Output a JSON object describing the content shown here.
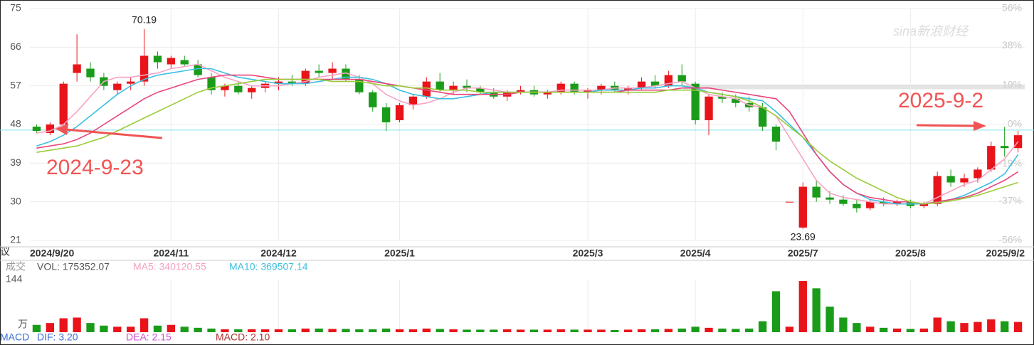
{
  "chart_data": {
    "type": "candlestick",
    "watermark": "sina新浪财经",
    "side_label": "议",
    "categories": [
      "2024/9/20",
      null,
      null,
      null,
      null,
      null,
      null,
      null,
      null,
      null,
      "2024/11",
      null,
      null,
      null,
      null,
      null,
      null,
      null,
      "2024/12",
      null,
      null,
      null,
      null,
      null,
      null,
      null,
      null,
      "2025/1",
      null,
      null,
      null,
      null,
      null,
      null,
      null,
      null,
      null,
      null,
      null,
      null,
      null,
      "2025/3",
      null,
      null,
      null,
      null,
      null,
      null,
      null,
      "2025/4",
      null,
      null,
      null,
      null,
      null,
      null,
      null,
      "2025/7",
      null,
      null,
      null,
      null,
      null,
      null,
      null,
      "2025/8",
      null,
      null,
      null,
      null,
      null,
      null,
      null,
      "2025/9/2"
    ],
    "open": [
      47.5,
      46,
      48,
      60,
      61,
      59,
      56,
      57.5,
      58,
      64,
      62,
      63,
      62,
      59,
      56,
      57,
      55.5,
      56.5,
      57.5,
      58,
      57.5,
      60.5,
      60,
      61,
      58.5,
      55.5,
      52,
      49,
      52.5,
      54.5,
      58,
      56,
      57,
      56.5,
      55.5,
      54.5,
      55.5,
      56,
      55,
      55.5,
      57.5,
      55.5,
      56,
      57,
      56,
      56.5,
      58,
      57,
      59.5,
      57.5,
      49,
      54.5,
      54,
      53,
      52,
      47.5,
      30,
      24,
      33.5,
      31,
      30.5,
      29.5,
      28.5,
      30,
      29.5,
      30,
      29,
      29.5,
      36,
      34.5,
      35.5,
      37.5,
      43,
      42.5
    ],
    "high": [
      48,
      48.5,
      58,
      69,
      62.5,
      60,
      58,
      59,
      70.19,
      65,
      64,
      64,
      63,
      60,
      57.5,
      58,
      57,
      58,
      59,
      59.5,
      61,
      62,
      62.5,
      62,
      59.5,
      56,
      53,
      53,
      55,
      59,
      60,
      58,
      58.5,
      57,
      56.5,
      56,
      57,
      57,
      56,
      58,
      58,
      56.5,
      57.5,
      58,
      57,
      59,
      59.5,
      60.5,
      62,
      58,
      55,
      55.5,
      55,
      54.5,
      53,
      48,
      30,
      34.5,
      35,
      32.5,
      31.5,
      30.5,
      30.5,
      31,
      30.5,
      30.5,
      30,
      37,
      37.5,
      36.5,
      38,
      44,
      47.5,
      46.5
    ],
    "low": [
      46,
      45.5,
      47.5,
      58,
      58,
      56,
      55,
      56,
      57,
      61,
      61,
      61.5,
      59,
      55,
      54.5,
      55,
      54,
      55.5,
      56,
      57,
      57,
      59,
      58.5,
      58,
      55,
      51,
      46.5,
      48.5,
      51.5,
      54,
      55.5,
      55,
      55.5,
      55,
      54,
      53.5,
      55,
      54.5,
      54,
      55,
      55,
      54,
      55,
      55.5,
      55,
      56,
      56.5,
      56.5,
      57,
      48,
      45.5,
      53,
      52,
      51,
      46.5,
      42,
      30,
      23.69,
      30,
      29.5,
      29,
      27.5,
      28,
      29,
      29,
      28.5,
      28.5,
      29,
      33.5,
      33.5,
      34.5,
      37,
      40.5,
      41.5
    ],
    "close": [
      46.5,
      48,
      57.5,
      62,
      59,
      57,
      57.5,
      58,
      64,
      62.5,
      63.5,
      62,
      59.5,
      56,
      57,
      55.5,
      56.5,
      57.5,
      58,
      57.5,
      60.5,
      60,
      61,
      58.5,
      55.5,
      52,
      48.5,
      52.5,
      54.5,
      58,
      56,
      57,
      56.5,
      55.5,
      54.5,
      55.5,
      56,
      55,
      55.5,
      57.5,
      55.5,
      56,
      57,
      56,
      56.5,
      58,
      57,
      59.5,
      58,
      49,
      54.5,
      54,
      53,
      52,
      47.5,
      44,
      30,
      33.5,
      31,
      30.5,
      29.5,
      28.5,
      30,
      29.5,
      30,
      29,
      29.5,
      36,
      34.5,
      35.5,
      37.5,
      43,
      42.5,
      45.5
    ],
    "up_color": "#e8141a",
    "down_color": "#1a9c1a",
    "ylim": [
      21,
      75
    ],
    "yticks": [
      21,
      30,
      39,
      48,
      57,
      66,
      75
    ],
    "y2lim": [
      -56,
      56
    ],
    "y2ticks": [
      {
        "value": 56,
        "label": "56%"
      },
      {
        "value": 38,
        "label": "38%"
      },
      {
        "value": 19,
        "label": "19%"
      },
      {
        "value": 0,
        "label": "0%"
      },
      {
        "value": -19,
        "label": "-19%"
      },
      {
        "value": -37,
        "label": "-37%"
      },
      {
        "value": -56,
        "label": "-56%"
      }
    ],
    "grid": true,
    "reference_line": {
      "value": 46.7,
      "color": "#7fe0e8"
    },
    "highlight_band": {
      "values": [
        56.2,
        57.3
      ],
      "color": "#d8d8d8"
    },
    "series": [
      {
        "color": "#f7a3c5",
        "values": [
          46,
          46.5,
          48,
          51,
          54.5,
          58,
          59,
          59,
          59.5,
          60,
          61,
          61.5,
          62,
          60.5,
          59,
          58,
          57,
          57,
          57,
          57.5,
          58,
          59,
          59.5,
          60,
          59,
          57.5,
          55,
          53.5,
          52.5,
          53,
          54,
          55.5,
          56.5,
          56.5,
          56,
          55.5,
          55.5,
          55.5,
          55.5,
          56,
          56,
          56,
          56,
          56.5,
          56.5,
          56.5,
          57,
          57.5,
          58,
          56.5,
          55,
          54.5,
          54,
          52.5,
          52,
          50,
          45,
          40,
          35,
          32,
          31,
          30.5,
          30,
          29.5,
          29.5,
          29.5,
          29.5,
          31,
          32.5,
          34,
          35,
          37.5,
          40,
          44
        ]
      },
      {
        "color": "#3cbfe0",
        "values": [
          43,
          44,
          45.5,
          47.5,
          50,
          52.5,
          55,
          57,
          58.5,
          59.5,
          60,
          60.5,
          61,
          61,
          60,
          59,
          58.5,
          58,
          57.5,
          57.5,
          57.5,
          58,
          58.5,
          59,
          59,
          58.5,
          57.5,
          56,
          55,
          54.5,
          54,
          54,
          54.5,
          55,
          55.5,
          55.5,
          55.5,
          55.5,
          55.5,
          55.5,
          55.5,
          55.5,
          56,
          56,
          56,
          56.5,
          56.5,
          57,
          57,
          56.5,
          55.5,
          55,
          54.5,
          54,
          53.5,
          51,
          48,
          45,
          41,
          37,
          34,
          32,
          30.5,
          30,
          29.5,
          29.5,
          29.5,
          30,
          30.5,
          31.5,
          33,
          34.5,
          36.5,
          41
        ]
      },
      {
        "color": "#e9467c",
        "values": [
          42.5,
          43,
          43.5,
          44.5,
          46,
          48,
          50,
          52,
          54,
          55.5,
          56.5,
          57.5,
          58.5,
          59,
          59.5,
          59.5,
          59.5,
          59,
          58.5,
          58.5,
          58.5,
          58.5,
          58.5,
          58.5,
          58.5,
          58,
          57.5,
          57,
          56.5,
          56,
          55.5,
          55,
          55,
          55,
          55,
          55,
          55.5,
          55.5,
          55.5,
          55.5,
          55.5,
          55.5,
          55.5,
          55.5,
          56,
          56,
          56,
          56,
          56.5,
          56.5,
          56.5,
          56,
          55.5,
          55,
          54.5,
          54,
          51,
          46,
          41,
          37,
          34,
          32,
          31,
          30.5,
          30,
          30,
          29.5,
          30,
          30.5,
          31,
          32,
          33.5,
          35,
          37
        ]
      },
      {
        "color": "#9ccb3a",
        "values": [
          41.5,
          42,
          42.5,
          43,
          44,
          45,
          46.5,
          48,
          49.5,
          51,
          52.5,
          54,
          55.5,
          56.5,
          57,
          57.5,
          58,
          58.5,
          58.5,
          58.5,
          58.5,
          58.5,
          58,
          58,
          58,
          57.5,
          57,
          57,
          56.5,
          56.5,
          56,
          56,
          56,
          55.5,
          55.5,
          55.5,
          55.5,
          55.5,
          55.5,
          55.5,
          55.5,
          55.5,
          55.5,
          55.5,
          55.5,
          55.5,
          55.5,
          56,
          56,
          56,
          55.5,
          55,
          54.5,
          53.5,
          52,
          50,
          47.5,
          45,
          42,
          39.5,
          37.5,
          35.5,
          34,
          32.5,
          31,
          30,
          29.5,
          29.8,
          30.2,
          30.8,
          31.5,
          32.5,
          33.5,
          34.5
        ]
      }
    ],
    "annotations": [
      {
        "text": "2024-9-23",
        "color": "#f05454"
      },
      {
        "text": "2025-9-2",
        "color": "#f05454"
      }
    ],
    "volume": {
      "title": "成交",
      "vol_label": "VOL: 175352.07",
      "ma5_label": {
        "text": "MA5: 340120.55",
        "color": "#f4a0c0"
      },
      "ma10_label": {
        "text": "MA10: 369507.14",
        "color": "#3cbfe0"
      },
      "unit": "万",
      "ylim": [
        0,
        144
      ],
      "yticks": [
        144
      ],
      "values": [
        20,
        25,
        38,
        40,
        25,
        18,
        15,
        15,
        38,
        18,
        20,
        15,
        12,
        10,
        8,
        8,
        8,
        8,
        8,
        8,
        10,
        10,
        9,
        9,
        8,
        8,
        10,
        8,
        8,
        10,
        9,
        8,
        7,
        7,
        7,
        8,
        7,
        7,
        7,
        8,
        7,
        7,
        7,
        6,
        7,
        8,
        8,
        9,
        10,
        15,
        12,
        10,
        9,
        10,
        30,
        112,
        15,
        140,
        120,
        70,
        40,
        25,
        15,
        12,
        10,
        9,
        10,
        40,
        30,
        25,
        28,
        35,
        30,
        28
      ]
    },
    "macd": {
      "title": "MACD",
      "dif": {
        "text": "DIF: 3.20",
        "color": "#3a6fd8"
      },
      "dea": {
        "text": "DEA: 2.15",
        "color": "#d050d0"
      },
      "macd": {
        "text": "MACD: 2.10",
        "color": "#b03030"
      }
    }
  }
}
